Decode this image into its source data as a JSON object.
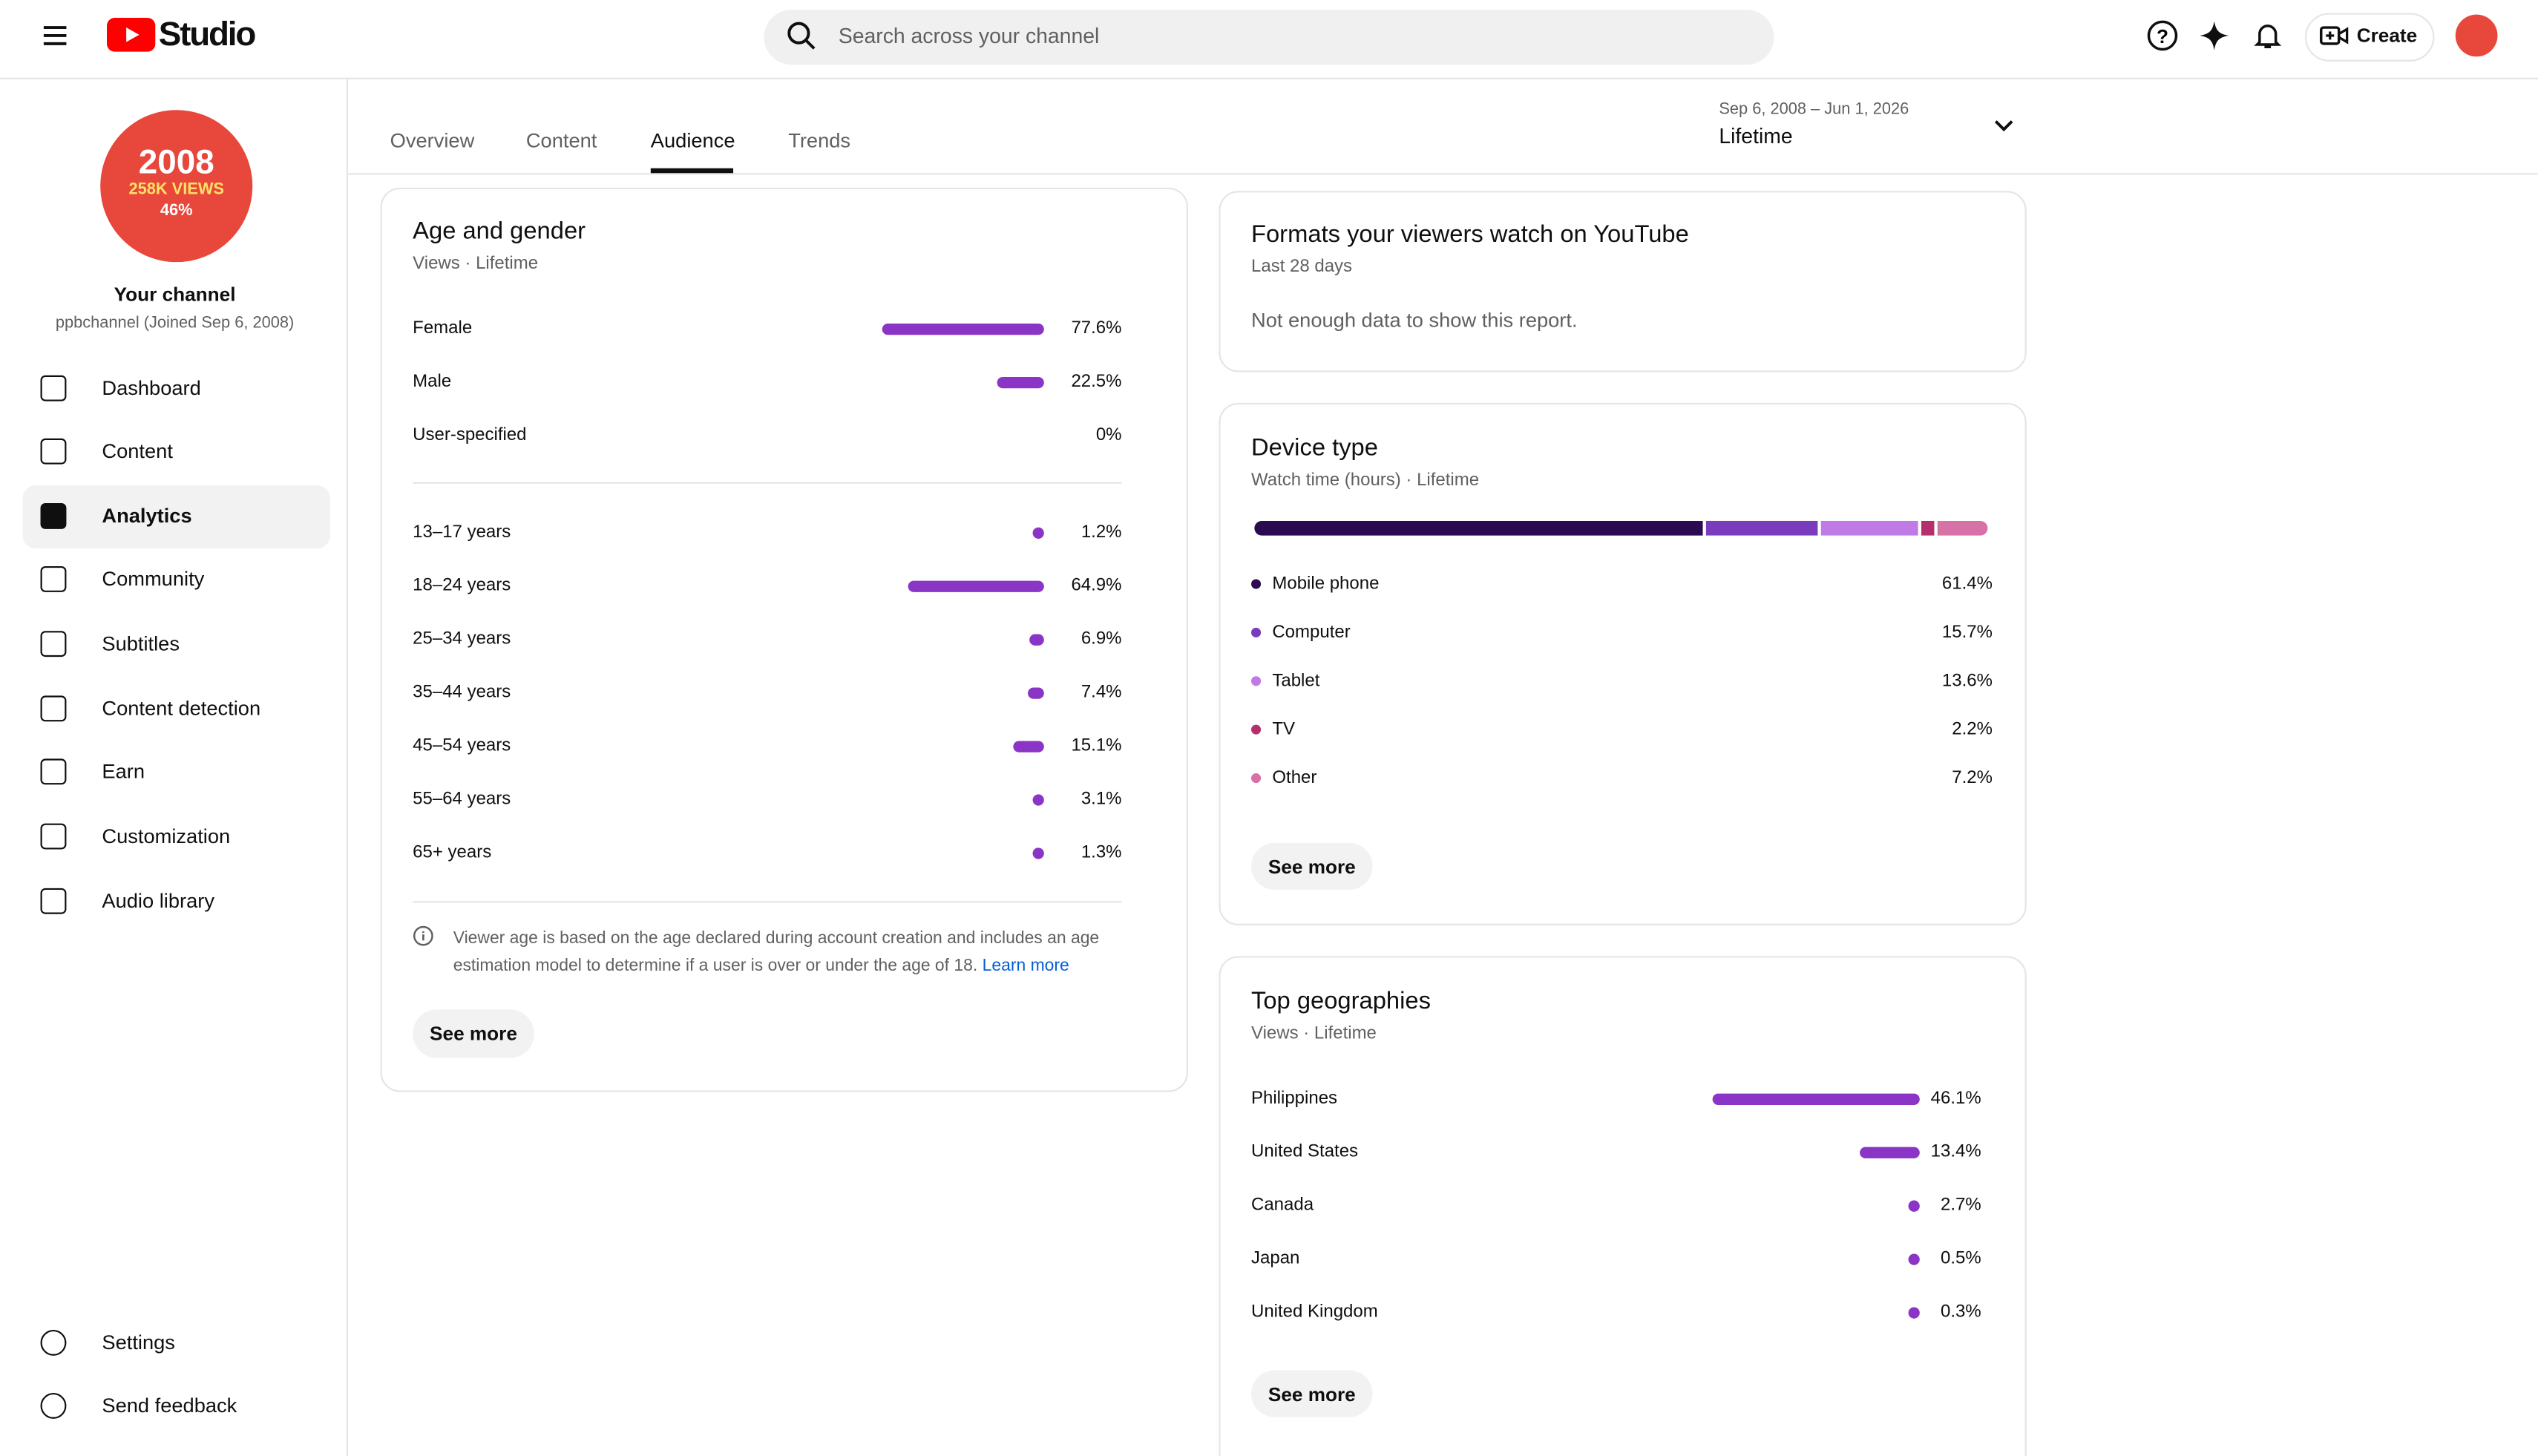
{
  "header": {
    "logo": "Studio",
    "search_placeholder": "Search across your channel",
    "create": "Create"
  },
  "channel": {
    "avatar_year": "2008",
    "avatar_views": "258K VIEWS",
    "avatar_pct": "46%",
    "name": "Your channel",
    "handle": "ppbchannel (Joined Sep 6, 2008)"
  },
  "nav": [
    "Dashboard",
    "Content",
    "Analytics",
    "Community",
    "Subtitles",
    "Content detection",
    "Earn",
    "Customization",
    "Audio library"
  ],
  "nav_bottom": [
    "Settings",
    "Send feedback"
  ],
  "tabs": [
    "Overview",
    "Content",
    "Audience",
    "Trends"
  ],
  "date_range": {
    "range": "Sep 6, 2008 – Jun 1, 2026",
    "label": "Lifetime"
  },
  "age_gender": {
    "title": "Age and gender",
    "subtitle": "Views · Lifetime",
    "gender": [
      {
        "label": "Female",
        "value": 77.6,
        "value_label": "77.6%"
      },
      {
        "label": "Male",
        "value": 22.5,
        "value_label": "22.5%"
      },
      {
        "label": "User-specified",
        "value": 0,
        "value_label": "0%"
      }
    ],
    "age": [
      {
        "label": "13–17 years",
        "value": 1.2,
        "value_label": "1.2%"
      },
      {
        "label": "18–24 years",
        "value": 64.9,
        "value_label": "64.9%"
      },
      {
        "label": "25–34 years",
        "value": 6.9,
        "value_label": "6.9%"
      },
      {
        "label": "35–44 years",
        "value": 7.4,
        "value_label": "7.4%"
      },
      {
        "label": "45–54 years",
        "value": 15.1,
        "value_label": "15.1%"
      },
      {
        "label": "55–64 years",
        "value": 3.1,
        "value_label": "3.1%"
      },
      {
        "label": "65+ years",
        "value": 1.3,
        "value_label": "1.3%"
      }
    ],
    "note": "Viewer age is based on the age declared during account creation and includes an age estimation model to determine if a user is over or under the age of 18.",
    "learn_more": "Learn more",
    "see_more": "See more"
  },
  "formats": {
    "title": "Formats your viewers watch on YouTube",
    "subtitle": "Last 28 days",
    "message": "Not enough data to show this report."
  },
  "device": {
    "title": "Device type",
    "subtitle": "Watch time (hours) · Lifetime",
    "series": [
      {
        "name": "Mobile phone",
        "color": "#2b0b4f",
        "value": 61.4,
        "value_label": "61.4%"
      },
      {
        "name": "Computer",
        "color": "#7b3bbd",
        "value": 15.7,
        "value_label": "15.7%"
      },
      {
        "name": "Tablet",
        "color": "#c07ae6",
        "value": 13.6,
        "value_label": "13.6%"
      },
      {
        "name": "TV",
        "color": "#b52f6d",
        "value": 2.2,
        "value_label": "2.2%"
      },
      {
        "name": "Other",
        "color": "#d772a6",
        "value": 7.2,
        "value_label": "7.2%"
      }
    ],
    "see_more": "See more"
  },
  "geo": {
    "title": "Top geographies",
    "subtitle": "Views · Lifetime",
    "rows": [
      {
        "label": "Philippines",
        "value": 46.1,
        "value_label": "46.1%"
      },
      {
        "label": "United States",
        "value": 13.4,
        "value_label": "13.4%"
      },
      {
        "label": "Canada",
        "value": 2.7,
        "value_label": "2.7%"
      },
      {
        "label": "Japan",
        "value": 0.5,
        "value_label": "0.5%"
      },
      {
        "label": "United Kingdom",
        "value": 0.3,
        "value_label": "0.3%"
      }
    ],
    "see_more": "See more"
  }
}
